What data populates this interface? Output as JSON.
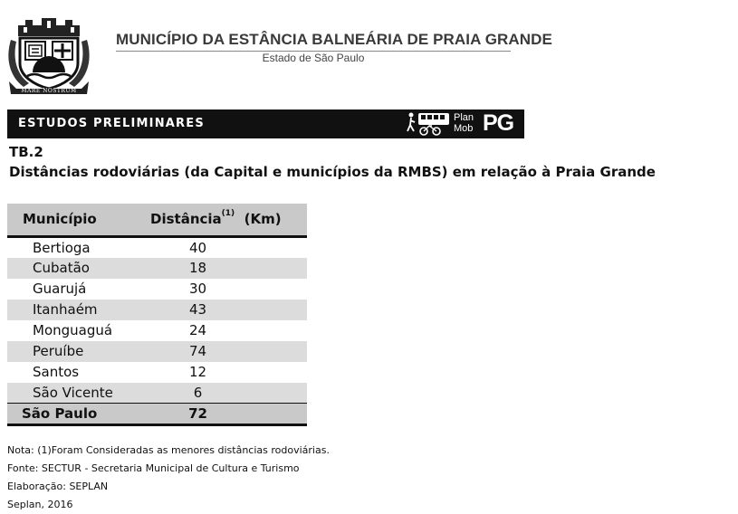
{
  "header": {
    "crest_motto": "MARE NOSTRUM",
    "municipality": "MUNICÍPIO DA ESTÂNCIA BALNEÁRIA DE PRAIA GRANDE",
    "state": "Estado de São Paulo"
  },
  "banner": {
    "label": "ESTUDOS PRELIMINARES",
    "logo_small_line1": "Plan",
    "logo_small_line2": "Mob",
    "logo_big": "PG"
  },
  "table_info": {
    "code": "TB.2",
    "title": "Distâncias rodoviárias (da Capital e municípios da RMBS) em relação à Praia Grande"
  },
  "table": {
    "col_municipio": "Município",
    "col_distancia": "Distância",
    "col_distancia_note": "(1)",
    "col_unit": "(Km)",
    "rows": [
      {
        "municipio": "Bertioga",
        "distancia": "40"
      },
      {
        "municipio": "Cubatão",
        "distancia": "18"
      },
      {
        "municipio": "Guarujá",
        "distancia": "30"
      },
      {
        "municipio": "Itanhaém",
        "distancia": "43"
      },
      {
        "municipio": "Monguaguá",
        "distancia": "24"
      },
      {
        "municipio": "Peruíbe",
        "distancia": "74"
      },
      {
        "municipio": "Santos",
        "distancia": "12"
      },
      {
        "municipio": "São Vicente",
        "distancia": "6"
      }
    ],
    "total": {
      "municipio": "São Paulo",
      "distancia": "72"
    }
  },
  "notes": {
    "nota": "Nota: (1)Foram Consideradas as menores distâncias rodoviárias.",
    "fonte": "Fonte: SECTUR - Secretaria Municipal de Cultura e Turismo",
    "elaboracao": "Elaboração: SEPLAN",
    "credit": "Seplan, 2016"
  }
}
